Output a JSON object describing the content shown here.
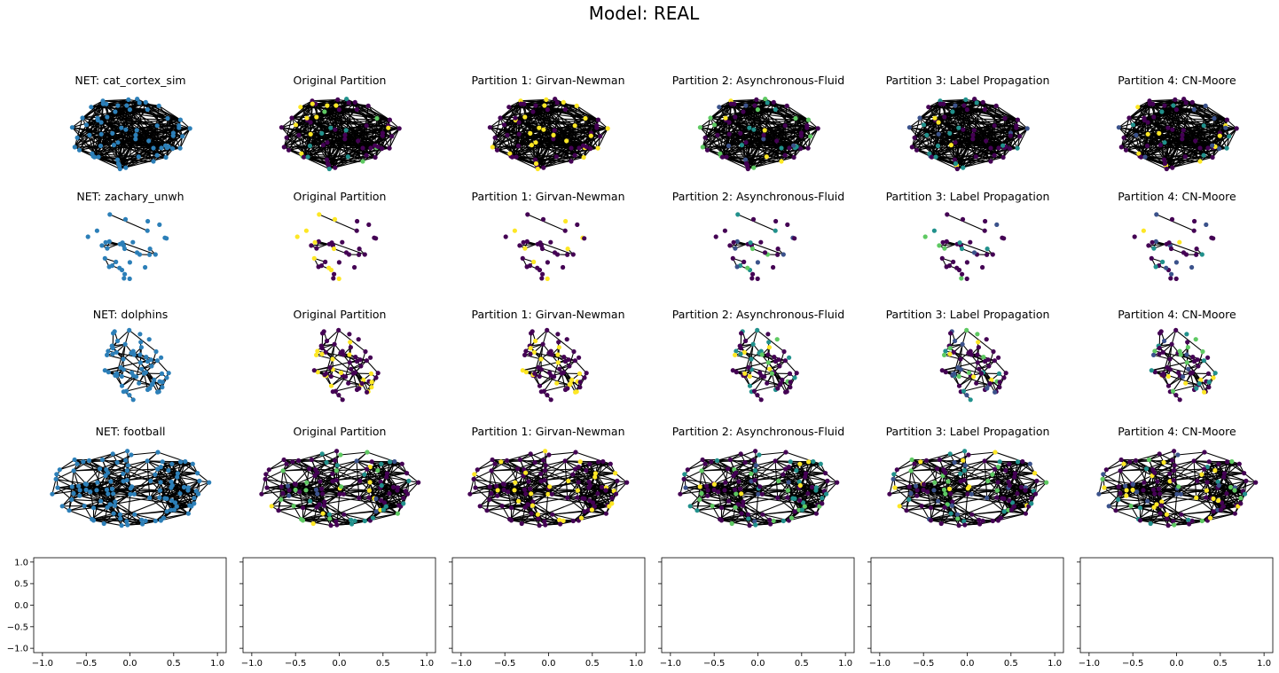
{
  "figure": {
    "title": "Model: REAL"
  },
  "colors": {
    "node_default": "#2c7fb8",
    "viridis": [
      "#440154",
      "#3b528b",
      "#21918c",
      "#5ec962",
      "#fde725"
    ],
    "edge": "#000000"
  },
  "chart_data": {
    "type": "network-grid",
    "title": "Model: REAL",
    "columns": [
      "NET",
      "Original Partition",
      "Partition 1: Girvan-Newman",
      "Partition 2: Asynchronous-Fluid",
      "Partition 3: Label Propagation",
      "Partition 4: CN-Moore"
    ],
    "rows": [
      {
        "network": "cat_cortex_sim",
        "titles": [
          "NET: cat_cortex_sim",
          "Original Partition",
          "Partition 1: Girvan-Newman",
          "Partition 2: Asynchronous-Fluid",
          "Partition 3: Label Propagation",
          "Partition 4: CN-Moore"
        ],
        "palettes": [
          [
            0
          ],
          [
            0,
            2,
            3,
            4
          ],
          [
            0,
            4
          ],
          [
            0,
            1,
            2,
            3,
            4
          ],
          [
            0,
            1,
            2,
            4
          ],
          [
            0,
            1,
            2,
            4
          ]
        ]
      },
      {
        "network": "zachary_unwh",
        "titles": [
          "NET: zachary_unwh",
          "Original Partition",
          "Partition 1: Girvan-Newman",
          "Partition 2: Asynchronous-Fluid",
          "Partition 3: Label Propagation",
          "Partition 4: CN-Moore"
        ],
        "palettes": [
          [
            0
          ],
          [
            0,
            4
          ],
          [
            0,
            4
          ],
          [
            0,
            1,
            2,
            3
          ],
          [
            0,
            1,
            2,
            3
          ],
          [
            0,
            1,
            2,
            4
          ]
        ]
      },
      {
        "network": "dolphins",
        "titles": [
          "NET: dolphins",
          "Original Partition",
          "Partition 1: Girvan-Newman",
          "Partition 2: Asynchronous-Fluid",
          "Partition 3: Label Propagation",
          "Partition 4: CN-Moore"
        ],
        "palettes": [
          [
            0
          ],
          [
            0,
            4
          ],
          [
            0,
            4
          ],
          [
            0,
            2,
            3,
            4
          ],
          [
            0,
            1,
            2,
            3,
            4
          ],
          [
            0,
            1,
            2,
            3,
            4
          ]
        ]
      },
      {
        "network": "football",
        "titles": [
          "NET: football",
          "Original Partition",
          "Partition 1: Girvan-Newman",
          "Partition 2: Asynchronous-Fluid",
          "Partition 3: Label Propagation",
          "Partition 4: CN-Moore"
        ],
        "palettes": [
          [
            0
          ],
          [
            0,
            1,
            2,
            3,
            4
          ],
          [
            0,
            4
          ],
          [
            0,
            1,
            2,
            3,
            4
          ],
          [
            0,
            1,
            2,
            3,
            4
          ],
          [
            0,
            1,
            2,
            3,
            4
          ]
        ]
      }
    ],
    "empty_axes": {
      "count": 6,
      "xlim": [
        -1.1,
        1.1
      ],
      "ylim": [
        -1.1,
        1.1
      ],
      "xticks": [
        -1.0,
        -0.5,
        0.0,
        0.5,
        1.0
      ],
      "yticks": [
        -1.0,
        -0.5,
        0.0,
        0.5,
        1.0
      ],
      "xtick_labels": [
        "−1.0",
        "−0.5",
        "0.0",
        "0.5",
        "1.0"
      ],
      "ytick_labels": [
        "−1.0",
        "−0.5",
        "0.0",
        "0.5",
        "1.0"
      ],
      "ytick_labels_shown_on_first_only": true
    }
  }
}
